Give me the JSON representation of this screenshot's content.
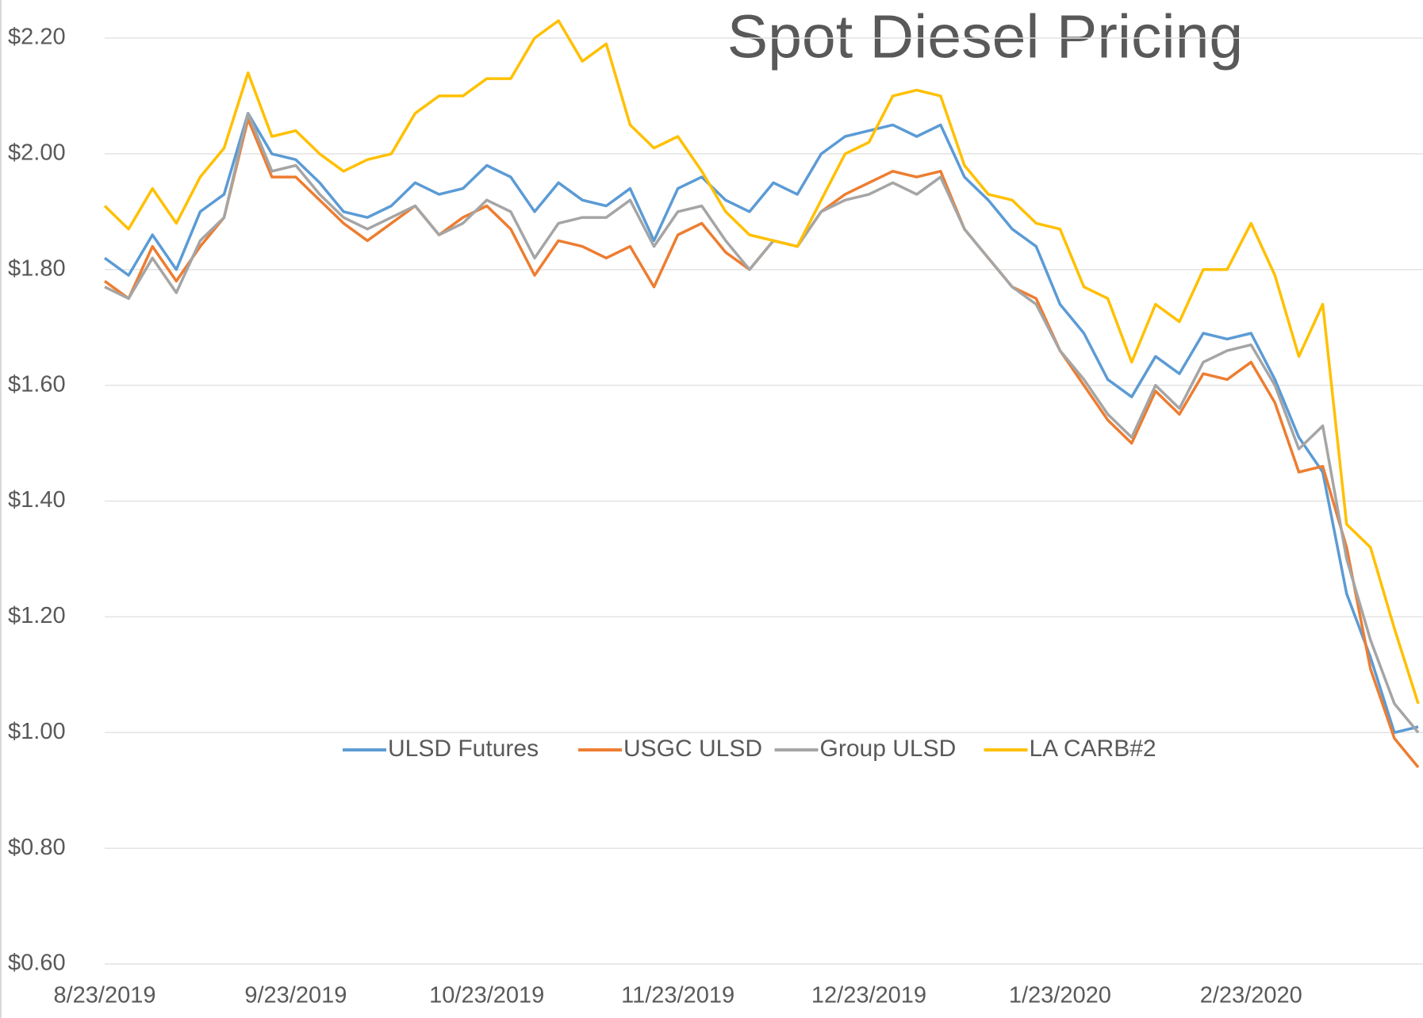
{
  "chart_data": {
    "type": "line",
    "title": "Spot Diesel Pricing",
    "categories": [
      "8/23/2019",
      null,
      null,
      null,
      null,
      null,
      null,
      null,
      "9/23/2019",
      null,
      null,
      null,
      null,
      null,
      null,
      null,
      "10/23/2019",
      null,
      null,
      null,
      null,
      null,
      null,
      null,
      "11/23/2019",
      null,
      null,
      null,
      null,
      null,
      null,
      null,
      "12/23/2019",
      null,
      null,
      null,
      null,
      null,
      null,
      null,
      "1/23/2020",
      null,
      null,
      null,
      null,
      null,
      null,
      null,
      "2/23/2020",
      null,
      null,
      null,
      null,
      null,
      null,
      null
    ],
    "series": [
      {
        "name": "ULSD Futures",
        "color": "#5b9bd5",
        "values": [
          1.82,
          1.79,
          1.86,
          1.8,
          1.9,
          1.93,
          2.07,
          2.0,
          1.99,
          1.95,
          1.9,
          1.89,
          1.91,
          1.95,
          1.93,
          1.94,
          1.98,
          1.96,
          1.9,
          1.95,
          1.92,
          1.91,
          1.94,
          1.85,
          1.94,
          1.96,
          1.92,
          1.9,
          1.95,
          1.93,
          2.0,
          2.03,
          2.04,
          2.05,
          2.03,
          2.05,
          1.96,
          1.92,
          1.87,
          1.84,
          1.74,
          1.69,
          1.61,
          1.58,
          1.65,
          1.62,
          1.69,
          1.68,
          1.69,
          1.61,
          1.51,
          1.45,
          1.24,
          1.13,
          1.0,
          1.01
        ]
      },
      {
        "name": "USGC ULSD",
        "color": "#ed7d31",
        "values": [
          1.78,
          1.75,
          1.84,
          1.78,
          1.84,
          1.89,
          2.06,
          1.96,
          1.96,
          1.92,
          1.88,
          1.85,
          1.88,
          1.91,
          1.86,
          1.89,
          1.91,
          1.87,
          1.79,
          1.85,
          1.84,
          1.82,
          1.84,
          1.77,
          1.86,
          1.88,
          1.83,
          1.8,
          1.85,
          1.84,
          1.9,
          1.93,
          1.95,
          1.97,
          1.96,
          1.97,
          1.87,
          1.82,
          1.77,
          1.75,
          1.66,
          1.6,
          1.54,
          1.5,
          1.59,
          1.55,
          1.62,
          1.61,
          1.64,
          1.57,
          1.45,
          1.46,
          1.32,
          1.11,
          0.99,
          0.94
        ]
      },
      {
        "name": "Group ULSD",
        "color": "#a5a5a5",
        "values": [
          1.77,
          1.75,
          1.82,
          1.76,
          1.85,
          1.89,
          2.07,
          1.97,
          1.98,
          1.93,
          1.89,
          1.87,
          1.89,
          1.91,
          1.86,
          1.88,
          1.92,
          1.9,
          1.82,
          1.88,
          1.89,
          1.89,
          1.92,
          1.84,
          1.9,
          1.91,
          1.85,
          1.8,
          1.85,
          1.84,
          1.9,
          1.92,
          1.93,
          1.95,
          1.93,
          1.96,
          1.87,
          1.82,
          1.77,
          1.74,
          1.66,
          1.61,
          1.55,
          1.51,
          1.6,
          1.56,
          1.64,
          1.66,
          1.67,
          1.6,
          1.49,
          1.53,
          1.3,
          1.16,
          1.05,
          1.0
        ]
      },
      {
        "name": "LA CARB#2",
        "color": "#ffc000",
        "values": [
          1.91,
          1.87,
          1.94,
          1.88,
          1.96,
          2.01,
          2.14,
          2.03,
          2.04,
          2.0,
          1.97,
          1.99,
          2.0,
          2.07,
          2.1,
          2.1,
          2.13,
          2.13,
          2.2,
          2.23,
          2.16,
          2.19,
          2.05,
          2.01,
          2.03,
          1.97,
          1.9,
          1.86,
          1.85,
          1.84,
          1.92,
          2.0,
          2.02,
          2.1,
          2.11,
          2.1,
          1.98,
          1.93,
          1.92,
          1.88,
          1.87,
          1.77,
          1.75,
          1.64,
          1.74,
          1.71,
          1.8,
          1.8,
          1.88,
          1.79,
          1.65,
          1.74,
          1.36,
          1.32,
          1.18,
          1.05
        ]
      }
    ],
    "ylim": [
      0.6,
      2.2
    ],
    "yticks": [
      {
        "value": 0.6,
        "label": "$0.60"
      },
      {
        "value": 0.8,
        "label": "$0.80"
      },
      {
        "value": 1.0,
        "label": "$1.00"
      },
      {
        "value": 1.2,
        "label": "$1.20"
      },
      {
        "value": 1.4,
        "label": "$1.40"
      },
      {
        "value": 1.6,
        "label": "$1.60"
      },
      {
        "value": 1.8,
        "label": "$1.80"
      },
      {
        "value": 2.0,
        "label": "$2.00"
      },
      {
        "value": 2.2,
        "label": "$2.20"
      }
    ],
    "grid": true,
    "legend": "center"
  }
}
